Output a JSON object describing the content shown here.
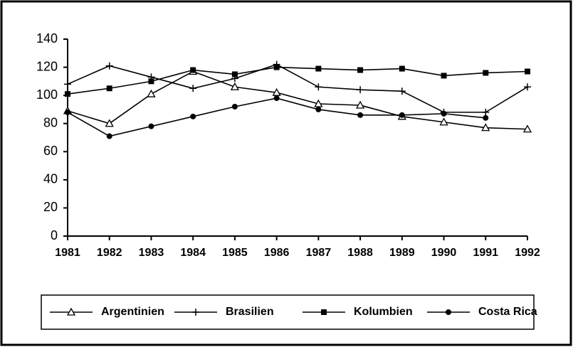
{
  "chart_data": {
    "type": "line",
    "categories": [
      "1981",
      "1982",
      "1983",
      "1984",
      "1985",
      "1986",
      "1987",
      "1988",
      "1989",
      "1990",
      "1991",
      "1992"
    ],
    "series": [
      {
        "name": "Argentinien",
        "color": "#000000",
        "marker": "triangle",
        "values": [
          89,
          80,
          101,
          117,
          106,
          102,
          94,
          93,
          85,
          81,
          77,
          76
        ]
      },
      {
        "name": "Brasilien",
        "color": "#000000",
        "marker": "plus",
        "values": [
          108,
          121,
          113,
          105,
          112,
          122,
          106,
          104,
          103,
          88,
          88,
          106
        ]
      },
      {
        "name": "Kolumbien",
        "color": "#000000",
        "marker": "square",
        "values": [
          101,
          105,
          110,
          118,
          115,
          120,
          119,
          118,
          119,
          114,
          116,
          117
        ]
      },
      {
        "name": "Costa Rica",
        "color": "#000000",
        "marker": "circle",
        "values": [
          88,
          71,
          78,
          85,
          92,
          98,
          90,
          86,
          86,
          87,
          84,
          null
        ]
      }
    ],
    "ylim": [
      0,
      140
    ],
    "yticks": [
      0,
      20,
      40,
      60,
      80,
      100,
      120,
      140
    ],
    "grid": false,
    "legend": "bottom"
  }
}
